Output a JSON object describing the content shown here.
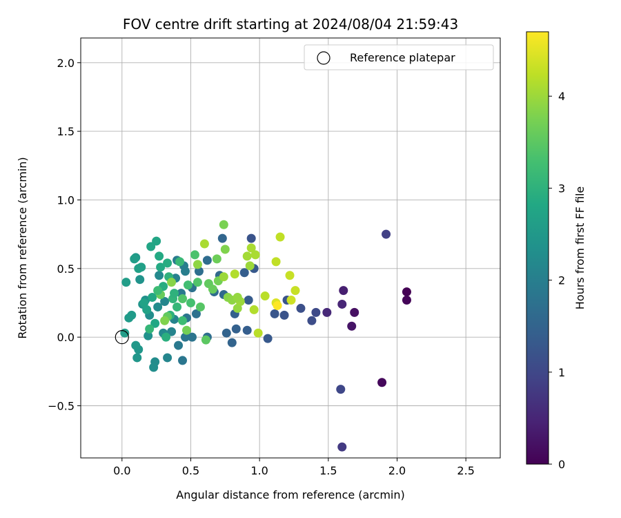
{
  "chart_data": {
    "type": "scatter",
    "title": "FOV centre drift starting at 2024/08/04 21:59:43",
    "xlabel": "Angular distance from reference (arcmin)",
    "ylabel": "Rotation from reference (arcmin)",
    "xlim": [
      -0.3,
      2.75
    ],
    "ylim": [
      -0.88,
      2.18
    ],
    "xticks": [
      0.0,
      0.5,
      1.0,
      1.5,
      2.0,
      2.5
    ],
    "xtick_labels": [
      "0.0",
      "0.5",
      "1.0",
      "1.5",
      "2.0",
      "2.5"
    ],
    "yticks": [
      -0.5,
      0.0,
      0.5,
      1.0,
      1.5,
      2.0
    ],
    "ytick_labels": [
      "−0.5",
      "0.0",
      "0.5",
      "1.0",
      "1.5",
      "2.0"
    ],
    "grid": true,
    "legend": {
      "placement": "top-right",
      "entries": [
        "Reference platepar"
      ]
    },
    "reference_point": {
      "x": 0.0,
      "y": 0.0
    },
    "colorbar": {
      "label": "Hours from first FF file",
      "colormap": "viridis",
      "range": [
        0,
        4.7
      ],
      "ticks": [
        0,
        1,
        2,
        3,
        4
      ],
      "tick_labels": [
        "0",
        "1",
        "2",
        "3",
        "4"
      ]
    },
    "points": [
      {
        "x": 2.07,
        "y": 0.33,
        "c": 0.0
      },
      {
        "x": 2.07,
        "y": 0.27,
        "c": 0.05
      },
      {
        "x": 1.89,
        "y": -0.33,
        "c": 0.1
      },
      {
        "x": 1.69,
        "y": 0.18,
        "c": 0.2
      },
      {
        "x": 1.67,
        "y": 0.08,
        "c": 0.25
      },
      {
        "x": 1.61,
        "y": 0.34,
        "c": 0.4
      },
      {
        "x": 1.6,
        "y": 0.24,
        "c": 0.5
      },
      {
        "x": 1.49,
        "y": 0.18,
        "c": 0.55
      },
      {
        "x": 1.6,
        "y": -0.8,
        "c": 0.8
      },
      {
        "x": 1.92,
        "y": 0.75,
        "c": 0.9
      },
      {
        "x": 1.59,
        "y": -0.38,
        "c": 1.0
      },
      {
        "x": 1.41,
        "y": 0.18,
        "c": 1.05
      },
      {
        "x": 1.38,
        "y": 0.12,
        "c": 1.1
      },
      {
        "x": 1.3,
        "y": 0.21,
        "c": 1.15
      },
      {
        "x": 1.2,
        "y": 0.27,
        "c": 1.2
      },
      {
        "x": 1.18,
        "y": 0.16,
        "c": 1.2
      },
      {
        "x": 1.11,
        "y": 0.17,
        "c": 1.25
      },
      {
        "x": 1.06,
        "y": -0.01,
        "c": 1.3
      },
      {
        "x": 0.96,
        "y": 0.5,
        "c": 1.3
      },
      {
        "x": 0.94,
        "y": 0.72,
        "c": 1.2
      },
      {
        "x": 0.92,
        "y": 0.27,
        "c": 1.35
      },
      {
        "x": 0.89,
        "y": 0.47,
        "c": 1.4
      },
      {
        "x": 0.91,
        "y": 0.05,
        "c": 1.4
      },
      {
        "x": 0.83,
        "y": 0.06,
        "c": 1.45
      },
      {
        "x": 0.82,
        "y": 0.17,
        "c": 1.45
      },
      {
        "x": 0.8,
        "y": -0.04,
        "c": 1.5
      },
      {
        "x": 0.76,
        "y": 0.03,
        "c": 1.5
      },
      {
        "x": 0.73,
        "y": 0.72,
        "c": 1.55
      },
      {
        "x": 0.74,
        "y": 0.31,
        "c": 1.6
      },
      {
        "x": 0.71,
        "y": 0.45,
        "c": 1.6
      },
      {
        "x": 0.67,
        "y": 0.33,
        "c": 1.65
      },
      {
        "x": 0.62,
        "y": 0.56,
        "c": 1.65
      },
      {
        "x": 0.62,
        "y": 0.0,
        "c": 1.7
      },
      {
        "x": 0.56,
        "y": 0.48,
        "c": 1.7
      },
      {
        "x": 0.54,
        "y": 0.17,
        "c": 1.75
      },
      {
        "x": 0.51,
        "y": 0.36,
        "c": 1.75
      },
      {
        "x": 0.51,
        "y": 0.0,
        "c": 1.8
      },
      {
        "x": 0.47,
        "y": 0.14,
        "c": 1.8
      },
      {
        "x": 0.46,
        "y": 0.0,
        "c": 1.85
      },
      {
        "x": 0.44,
        "y": -0.17,
        "c": 1.85
      },
      {
        "x": 0.41,
        "y": -0.06,
        "c": 1.9
      },
      {
        "x": 0.43,
        "y": 0.32,
        "c": 1.9
      },
      {
        "x": 0.4,
        "y": 0.56,
        "c": 1.95
      },
      {
        "x": 0.46,
        "y": 0.48,
        "c": 2.0
      },
      {
        "x": 0.45,
        "y": 0.52,
        "c": 2.0
      },
      {
        "x": 0.39,
        "y": 0.43,
        "c": 2.05
      },
      {
        "x": 0.38,
        "y": 0.13,
        "c": 2.1
      },
      {
        "x": 0.36,
        "y": 0.04,
        "c": 2.1
      },
      {
        "x": 0.33,
        "y": -0.15,
        "c": 2.15
      },
      {
        "x": 0.31,
        "y": 0.26,
        "c": 2.15
      },
      {
        "x": 0.3,
        "y": 0.03,
        "c": 2.2
      },
      {
        "x": 0.27,
        "y": 0.45,
        "c": 2.2
      },
      {
        "x": 0.26,
        "y": 0.22,
        "c": 2.25
      },
      {
        "x": 0.24,
        "y": -0.18,
        "c": 2.25
      },
      {
        "x": 0.23,
        "y": -0.22,
        "c": 2.3
      },
      {
        "x": 0.2,
        "y": 0.16,
        "c": 2.3
      },
      {
        "x": 0.19,
        "y": 0.01,
        "c": 2.35
      },
      {
        "x": 0.17,
        "y": 0.27,
        "c": 2.35
      },
      {
        "x": 0.15,
        "y": 0.24,
        "c": 2.4
      },
      {
        "x": 0.13,
        "y": 0.42,
        "c": 2.4
      },
      {
        "x": 0.12,
        "y": -0.09,
        "c": 2.45
      },
      {
        "x": 0.11,
        "y": -0.15,
        "c": 2.45
      },
      {
        "x": 0.1,
        "y": 0.58,
        "c": 2.5
      },
      {
        "x": 0.1,
        "y": -0.06,
        "c": 2.5
      },
      {
        "x": 0.07,
        "y": 0.16,
        "c": 2.55
      },
      {
        "x": 0.05,
        "y": 0.14,
        "c": 2.55
      },
      {
        "x": 0.03,
        "y": 0.4,
        "c": 2.6
      },
      {
        "x": 0.02,
        "y": 0.03,
        "c": 2.6
      },
      {
        "x": 0.09,
        "y": 0.57,
        "c": 2.6
      },
      {
        "x": 0.12,
        "y": 0.5,
        "c": 2.65
      },
      {
        "x": 0.14,
        "y": 0.51,
        "c": 2.65
      },
      {
        "x": 0.16,
        "y": 0.25,
        "c": 2.7
      },
      {
        "x": 0.18,
        "y": 0.2,
        "c": 2.7
      },
      {
        "x": 0.21,
        "y": 0.66,
        "c": 2.75
      },
      {
        "x": 0.25,
        "y": 0.7,
        "c": 2.75
      },
      {
        "x": 0.22,
        "y": 0.29,
        "c": 2.8
      },
      {
        "x": 0.24,
        "y": 0.1,
        "c": 2.8
      },
      {
        "x": 0.27,
        "y": 0.59,
        "c": 2.85
      },
      {
        "x": 0.28,
        "y": 0.51,
        "c": 2.85
      },
      {
        "x": 0.3,
        "y": 0.37,
        "c": 2.9
      },
      {
        "x": 0.33,
        "y": 0.54,
        "c": 2.9
      },
      {
        "x": 0.32,
        "y": 0.0,
        "c": 2.95
      },
      {
        "x": 0.34,
        "y": 0.44,
        "c": 3.0
      },
      {
        "x": 0.35,
        "y": 0.16,
        "c": 3.0
      },
      {
        "x": 0.37,
        "y": 0.28,
        "c": 3.05
      },
      {
        "x": 0.4,
        "y": 0.22,
        "c": 3.1
      },
      {
        "x": 0.42,
        "y": 0.55,
        "c": 3.15
      },
      {
        "x": 0.44,
        "y": 0.12,
        "c": 3.2
      },
      {
        "x": 0.48,
        "y": 0.38,
        "c": 3.25
      },
      {
        "x": 0.5,
        "y": 0.25,
        "c": 3.3
      },
      {
        "x": 0.53,
        "y": 0.6,
        "c": 3.35
      },
      {
        "x": 0.55,
        "y": 0.4,
        "c": 3.4
      },
      {
        "x": 0.57,
        "y": 0.22,
        "c": 3.45
      },
      {
        "x": 0.61,
        "y": -0.02,
        "c": 3.5
      },
      {
        "x": 0.63,
        "y": 0.39,
        "c": 3.55
      },
      {
        "x": 0.66,
        "y": 0.35,
        "c": 3.6
      },
      {
        "x": 0.69,
        "y": 0.57,
        "c": 3.65
      },
      {
        "x": 0.7,
        "y": 0.41,
        "c": 3.7
      },
      {
        "x": 0.74,
        "y": 0.82,
        "c": 3.75
      },
      {
        "x": 0.75,
        "y": 0.64,
        "c": 3.8
      },
      {
        "x": 0.77,
        "y": 0.29,
        "c": 3.85
      },
      {
        "x": 0.8,
        "y": 0.27,
        "c": 3.9
      },
      {
        "x": 0.84,
        "y": 0.21,
        "c": 3.95
      },
      {
        "x": 0.86,
        "y": 0.26,
        "c": 4.0
      },
      {
        "x": 0.91,
        "y": 0.59,
        "c": 4.05
      },
      {
        "x": 0.94,
        "y": 0.65,
        "c": 4.1
      },
      {
        "x": 0.97,
        "y": 0.6,
        "c": 4.1
      },
      {
        "x": 0.96,
        "y": 0.2,
        "c": 4.15
      },
      {
        "x": 0.99,
        "y": 0.03,
        "c": 4.2
      },
      {
        "x": 1.04,
        "y": 0.3,
        "c": 4.2
      },
      {
        "x": 1.12,
        "y": 0.55,
        "c": 4.25
      },
      {
        "x": 1.15,
        "y": 0.73,
        "c": 4.25
      },
      {
        "x": 1.22,
        "y": 0.45,
        "c": 4.3
      },
      {
        "x": 1.26,
        "y": 0.34,
        "c": 4.3
      },
      {
        "x": 1.23,
        "y": 0.27,
        "c": 4.35
      },
      {
        "x": 1.12,
        "y": 0.25,
        "c": 4.45
      },
      {
        "x": 1.13,
        "y": 0.23,
        "c": 4.7
      },
      {
        "x": 0.6,
        "y": 0.68,
        "c": 4.1
      },
      {
        "x": 0.82,
        "y": 0.46,
        "c": 4.15
      },
      {
        "x": 0.74,
        "y": 0.44,
        "c": 4.0
      },
      {
        "x": 0.55,
        "y": 0.53,
        "c": 3.9
      },
      {
        "x": 0.36,
        "y": 0.4,
        "c": 3.85
      },
      {
        "x": 0.28,
        "y": 0.31,
        "c": 3.6
      },
      {
        "x": 0.33,
        "y": 0.15,
        "c": 3.55
      },
      {
        "x": 0.44,
        "y": 0.28,
        "c": 3.4
      },
      {
        "x": 0.47,
        "y": 0.05,
        "c": 3.7
      },
      {
        "x": 0.2,
        "y": 0.06,
        "c": 3.1
      },
      {
        "x": 0.26,
        "y": 0.34,
        "c": 3.2
      },
      {
        "x": 0.38,
        "y": 0.32,
        "c": 3.0
      },
      {
        "x": 0.31,
        "y": 0.12,
        "c": 3.8
      },
      {
        "x": 0.84,
        "y": 0.29,
        "c": 3.95
      },
      {
        "x": 0.93,
        "y": 0.52,
        "c": 4.0
      }
    ]
  }
}
